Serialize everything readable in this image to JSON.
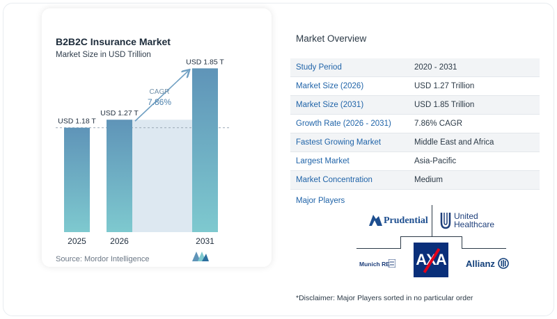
{
  "chart_data": {
    "type": "bar",
    "title": "B2B2C Insurance Market",
    "subtitle": "Market Size in USD Trillion",
    "categories": [
      "2025",
      "2026",
      "2031"
    ],
    "values": [
      1.18,
      1.27,
      1.85
    ],
    "data_labels": [
      "USD 1.18 T",
      "USD 1.27 T",
      "USD 1.85 T"
    ],
    "cagr_label": "CAGR",
    "cagr_value": "7.86%",
    "ylim": [
      0,
      1.9
    ],
    "colors": {
      "bar_top": "#5f94b8",
      "bar_bottom": "#7ec9cf",
      "area": "#dde8f1",
      "arrow": "#6f9fc2"
    }
  },
  "source": "Source: Mordor Intelligence",
  "overview": {
    "title": "Market Overview",
    "rows": [
      {
        "label": "Study Period",
        "value": "2020 - 2031"
      },
      {
        "label": "Market Size (2026)",
        "value": "USD 1.27 Trillion"
      },
      {
        "label": "Market Size (2031)",
        "value": "USD 1.85 Trillion"
      },
      {
        "label": "Growth Rate (2026 - 2031)",
        "value": "7.86% CAGR"
      },
      {
        "label": "Fastest Growing Market",
        "value": "Middle East and Africa"
      },
      {
        "label": "Largest Market",
        "value": "Asia-Pacific"
      },
      {
        "label": "Market Concentration",
        "value": "Medium"
      }
    ]
  },
  "players": {
    "title": "Major Players",
    "prudential": "Prudential",
    "uh_line1": "United",
    "uh_line2": "Healthcare",
    "munich": "Munich RE",
    "axa": "AXA",
    "allianz": "Allianz"
  },
  "disclaimer": "*Disclaimer: Major Players sorted in no particular order"
}
